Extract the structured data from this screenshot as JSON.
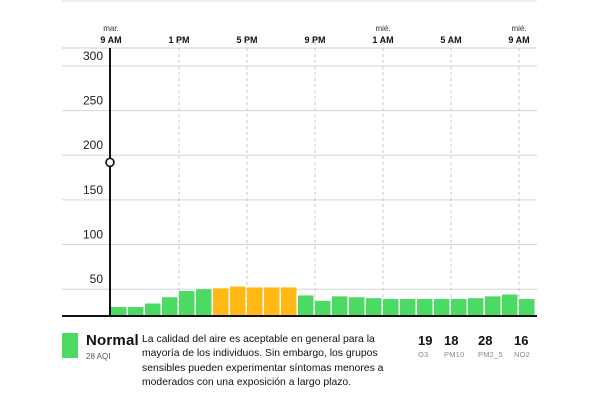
{
  "chart_data": {
    "type": "bar",
    "y_ticks": [
      50,
      100,
      150,
      200,
      250,
      300
    ],
    "ylim": [
      20,
      310
    ],
    "time_labels": [
      {
        "day": "mar.",
        "time": "9 AM",
        "x_index": 0
      },
      {
        "day": "",
        "time": "1 PM",
        "x_index": 4
      },
      {
        "day": "",
        "time": "5 PM",
        "x_index": 8
      },
      {
        "day": "",
        "time": "9 PM",
        "x_index": 12
      },
      {
        "day": "mié.",
        "time": "1 AM",
        "x_index": 16
      },
      {
        "day": "",
        "time": "5 AM",
        "x_index": 20
      },
      {
        "day": "mié.",
        "time": "9 AM",
        "x_index": 24
      }
    ],
    "values": [
      30,
      30,
      34,
      41,
      48,
      50,
      51,
      53,
      52,
      52,
      52,
      43,
      37,
      42,
      41,
      40,
      39,
      39,
      39,
      39,
      39,
      40,
      42,
      44,
      39
    ],
    "levels": [
      "good",
      "good",
      "good",
      "good",
      "good",
      "good",
      "moderate",
      "moderate",
      "moderate",
      "moderate",
      "moderate",
      "good",
      "good",
      "good",
      "good",
      "good",
      "good",
      "good",
      "good",
      "good",
      "good",
      "good",
      "good",
      "good",
      "good"
    ],
    "colors": {
      "good": "#4cd964",
      "moderate": "#ffb814"
    },
    "cursor_value": 192,
    "grid": true
  },
  "status": {
    "label": "Normal",
    "aqi_text": "28 AQI",
    "color": "#4cd964",
    "description": "La calidad del aire es aceptable en general para la mayoría de los individuos. Sin embargo, los grupos sensibles pueden experimentar síntomas menores a moderados con una exposición a largo plazo."
  },
  "pollutants": [
    {
      "value": "19",
      "name": "O3"
    },
    {
      "value": "18",
      "name": "PM10"
    },
    {
      "value": "28",
      "name": "PM2_5"
    },
    {
      "value": "16",
      "name": "NO2"
    }
  ]
}
